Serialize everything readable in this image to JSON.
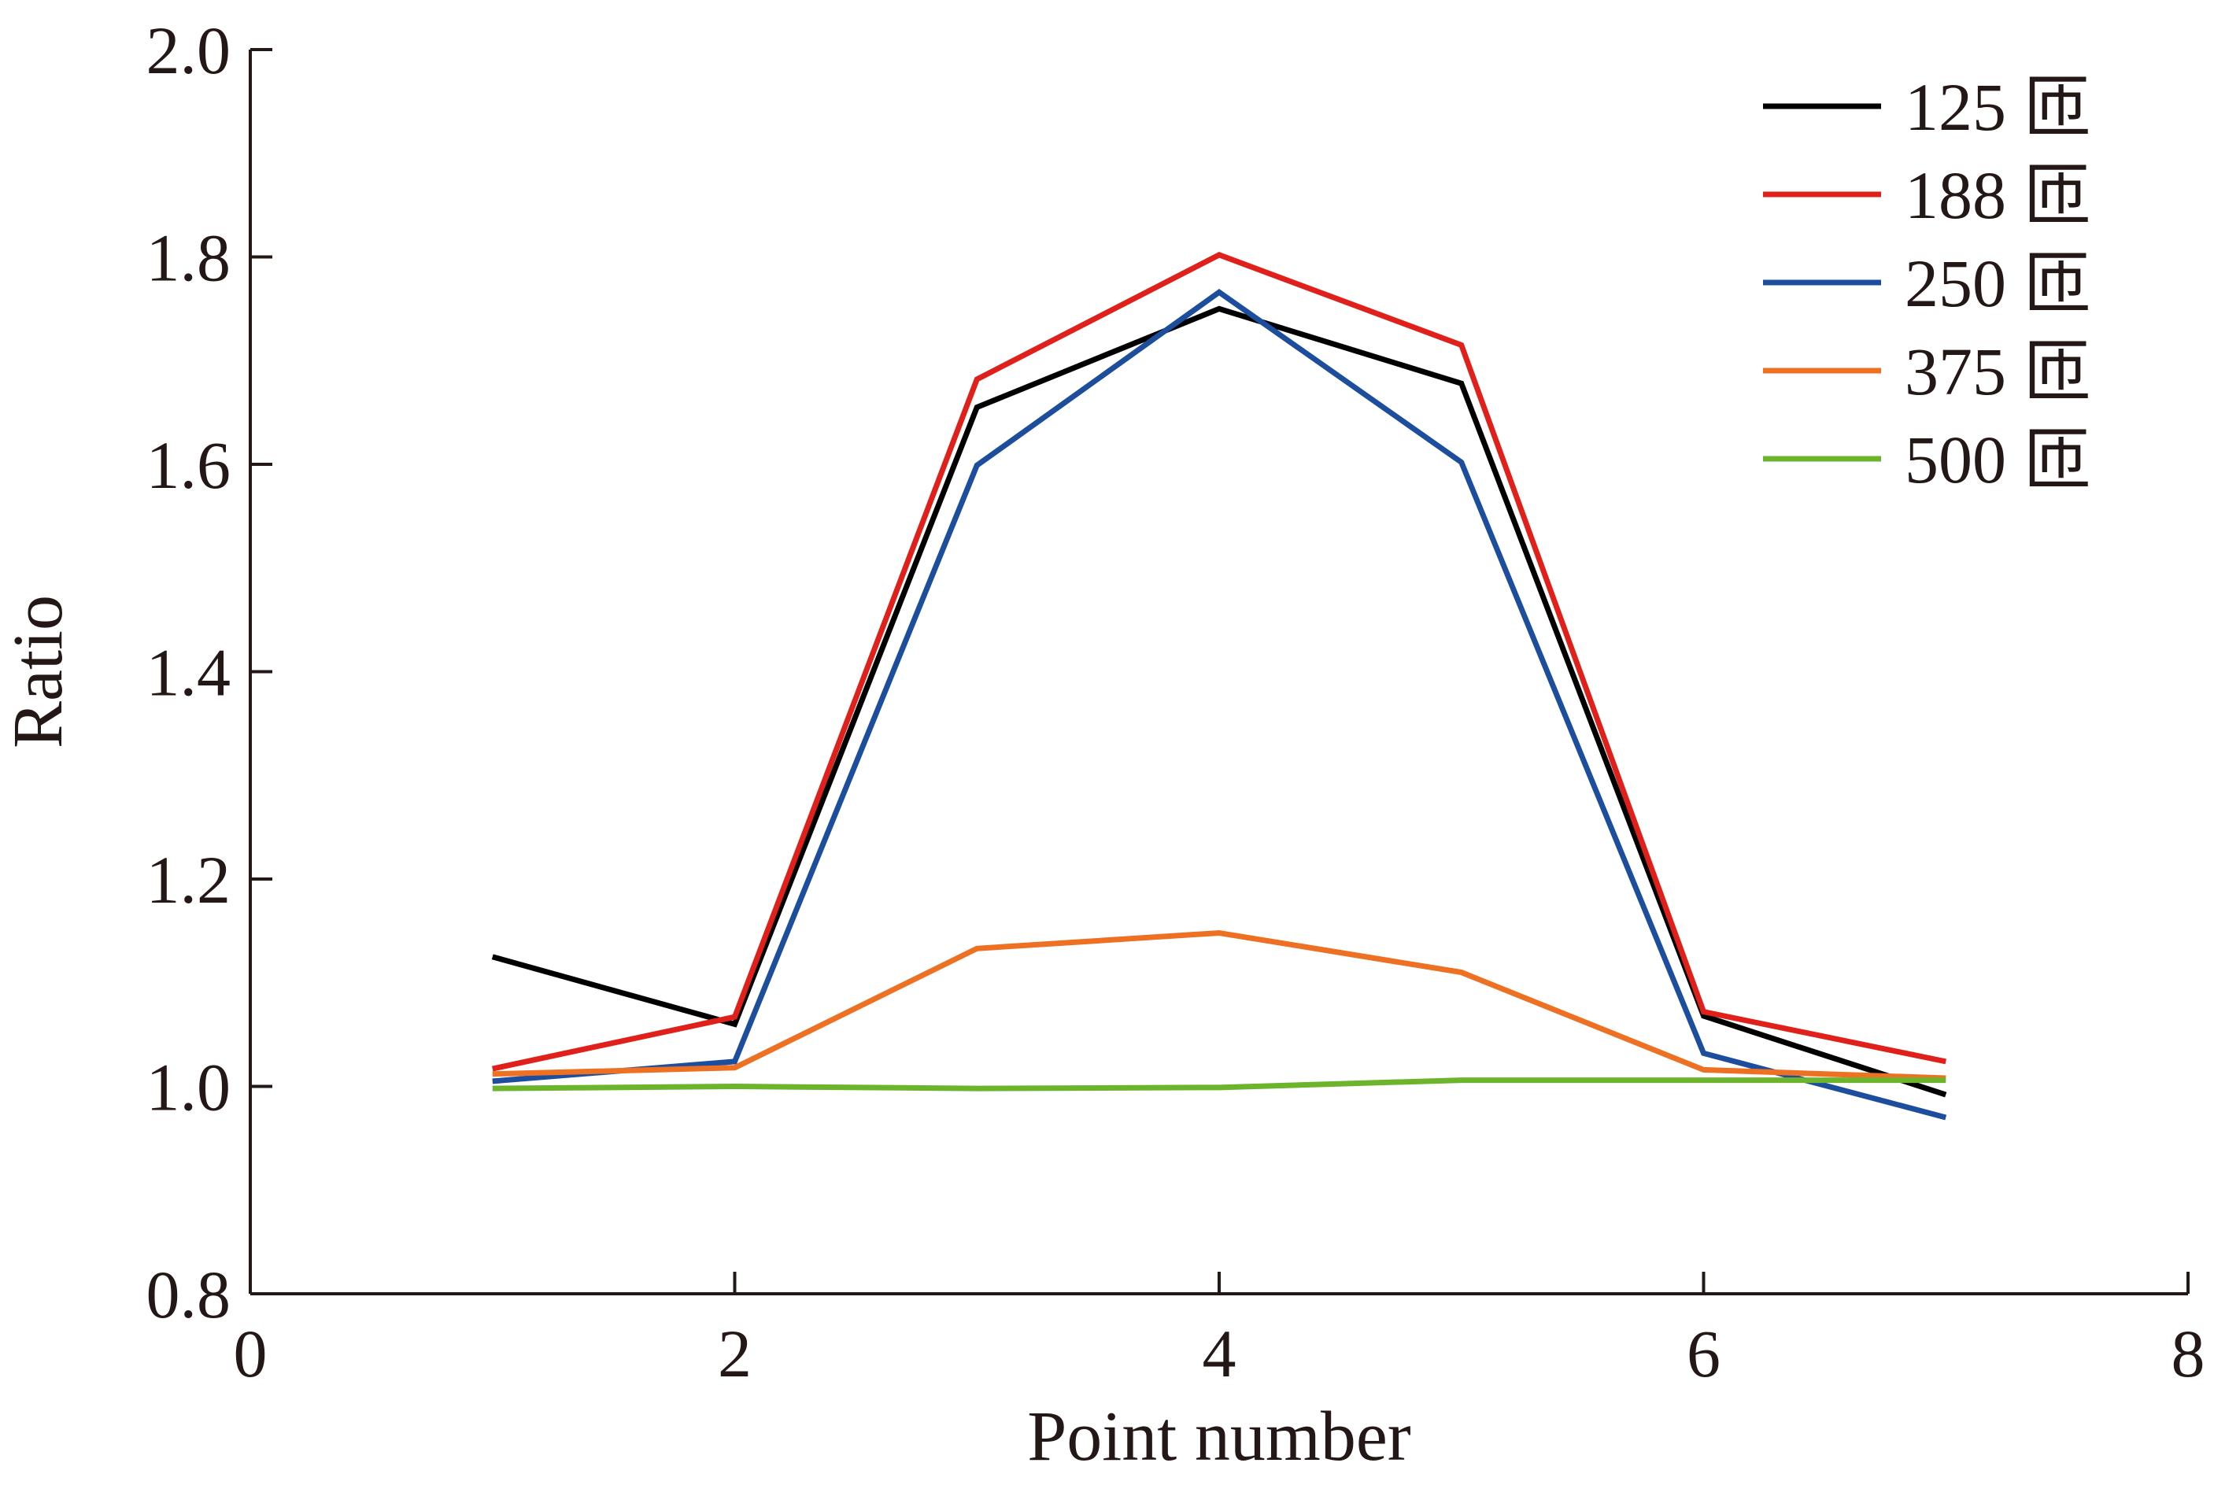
{
  "chart_data": {
    "type": "line",
    "title": "",
    "xlabel": "Point number",
    "ylabel": "Ratio",
    "xlim": [
      0,
      8
    ],
    "ylim": [
      0.8,
      2.0
    ],
    "xticks": [
      0,
      2,
      4,
      6,
      8
    ],
    "xtick_labels": [
      "0",
      "2",
      "4",
      "6",
      "8"
    ],
    "yticks": [
      0.8,
      1.0,
      1.2,
      1.4,
      1.6,
      1.8,
      2.0
    ],
    "ytick_labels": [
      "0.8",
      "1.0",
      "1.2",
      "1.4",
      "1.6",
      "1.8",
      "2.0"
    ],
    "grid": false,
    "legend_position": "top-right",
    "x": [
      1,
      2,
      3,
      4,
      5,
      6,
      7
    ],
    "series": [
      {
        "name": "125 匝",
        "color": "#000000",
        "values": [
          1.125,
          1.06,
          1.655,
          1.75,
          1.678,
          1.068,
          0.992
        ]
      },
      {
        "name": "188 匝",
        "color": "#e0201b",
        "values": [
          1.017,
          1.067,
          1.682,
          1.802,
          1.715,
          1.072,
          1.024
        ]
      },
      {
        "name": "250 匝",
        "color": "#1d4e9e",
        "values": [
          1.005,
          1.024,
          1.599,
          1.766,
          1.602,
          1.032,
          0.97
        ]
      },
      {
        "name": "375 匝",
        "color": "#ee7023",
        "values": [
          1.012,
          1.018,
          1.133,
          1.148,
          1.11,
          1.016,
          1.008
        ]
      },
      {
        "name": "500 匝",
        "color": "#6cb42c",
        "values": [
          0.998,
          1.0,
          0.998,
          0.999,
          1.006,
          1.006,
          1.006
        ]
      }
    ]
  }
}
